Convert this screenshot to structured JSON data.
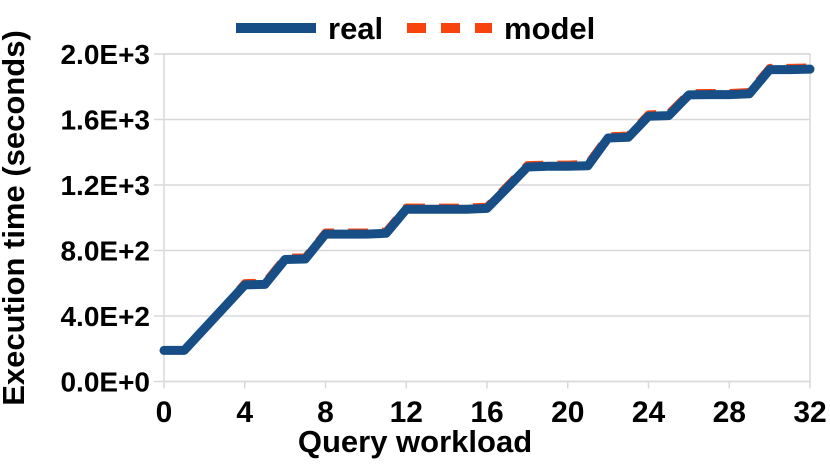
{
  "chart_data": {
    "type": "line",
    "title": "",
    "xlabel": "Query workload",
    "ylabel": "Execution time (seconds)",
    "xlim": [
      0,
      32
    ],
    "ylim": [
      0,
      2000
    ],
    "grid": "horizontal",
    "legend_position": "top-center",
    "xticks": [
      0,
      4,
      8,
      12,
      16,
      20,
      24,
      28,
      32
    ],
    "xtick_labels": [
      "0",
      "4",
      "8",
      "12",
      "16",
      "20",
      "24",
      "28",
      "32"
    ],
    "yticks": [
      0,
      400,
      800,
      1200,
      1600,
      2000
    ],
    "ytick_labels": [
      "0.0E+0",
      "4.0E+2",
      "8.0E+2",
      "1.2E+3",
      "1.6E+3",
      "2.0E+3"
    ],
    "x": [
      0,
      1,
      2,
      3,
      4,
      5,
      6,
      7,
      8,
      9,
      10,
      11,
      12,
      13,
      14,
      15,
      16,
      17,
      18,
      19,
      20,
      21,
      22,
      23,
      24,
      25,
      26,
      27,
      28,
      29,
      30,
      31,
      32
    ],
    "series": [
      {
        "name": "real",
        "color": "#174e86",
        "style": "solid",
        "values": [
          190,
          190,
          323,
          456,
          590,
          593,
          745,
          748,
          900,
          900,
          900,
          905,
          1052,
          1052,
          1052,
          1052,
          1057,
          1183,
          1310,
          1314,
          1314,
          1318,
          1487,
          1491,
          1620,
          1624,
          1750,
          1752,
          1752,
          1757,
          1905,
          1905,
          1908
        ]
      },
      {
        "name": "model",
        "color": "#f8430e",
        "style": "dashed",
        "values": [
          190,
          190,
          325,
          460,
          602,
          605,
          757,
          760,
          912,
          911,
          911,
          917,
          1064,
          1063,
          1063,
          1064,
          1069,
          1195,
          1323,
          1326,
          1326,
          1331,
          1499,
          1503,
          1633,
          1637,
          1762,
          1763,
          1763,
          1769,
          1917,
          1917,
          1920
        ]
      }
    ]
  },
  "colors": {
    "background": "#ffffff",
    "frame_and_grid": "#d9d9d9",
    "text": "#000000",
    "real_line": "#174e86",
    "model_line": "#f8430e"
  }
}
